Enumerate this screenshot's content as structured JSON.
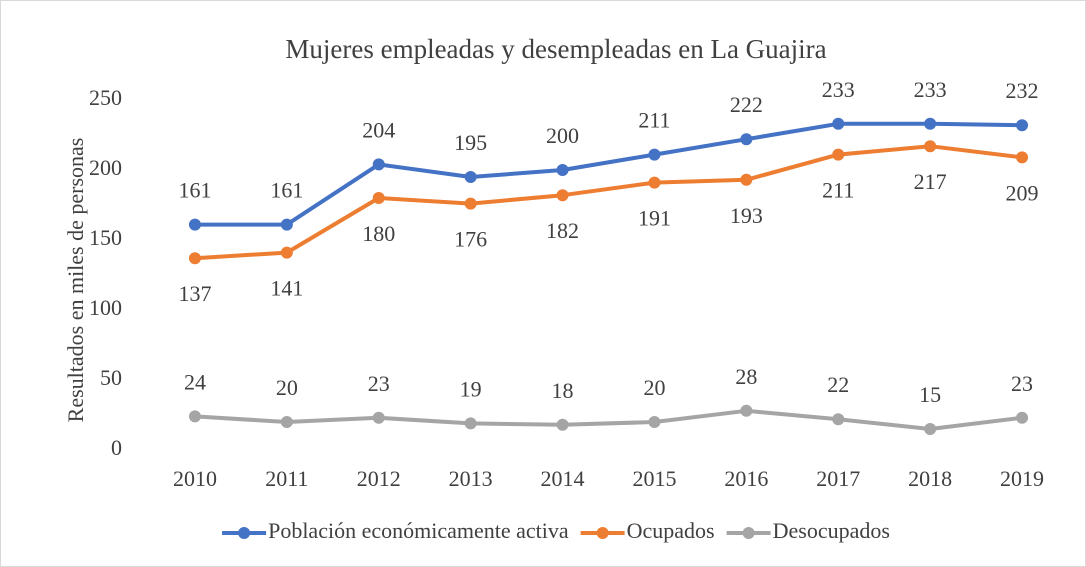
{
  "chart_data": {
    "type": "line",
    "title": "Mujeres empleadas y desempleadas en La Guajira",
    "y_label": "Resultados en miles de personas",
    "categories": [
      "2010",
      "2011",
      "2012",
      "2013",
      "2014",
      "2015",
      "2016",
      "2017",
      "2018",
      "2019"
    ],
    "series": [
      {
        "name": "Población económicamente activa",
        "color": "#4472c4",
        "values": [
          161,
          161,
          204,
          195,
          200,
          211,
          222,
          233,
          233,
          232
        ]
      },
      {
        "name": "Ocupados",
        "color": "#ed7d31",
        "values": [
          137,
          141,
          180,
          176,
          182,
          191,
          193,
          211,
          217,
          209
        ]
      },
      {
        "name": "Desocupados",
        "color": "#a5a5a5",
        "values": [
          24,
          20,
          23,
          19,
          18,
          20,
          28,
          22,
          15,
          23
        ]
      }
    ],
    "ylim": [
      0,
      250
    ],
    "yticks": [
      0,
      50,
      100,
      150,
      200,
      250
    ],
    "grid": false,
    "legend": "bottom"
  }
}
